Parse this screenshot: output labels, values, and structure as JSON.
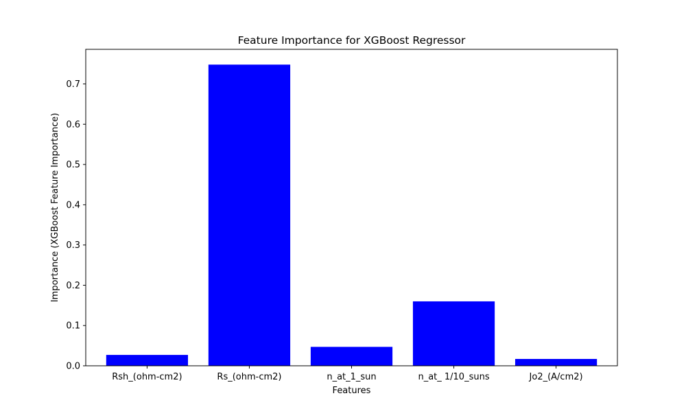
{
  "chart_data": {
    "type": "bar",
    "title": "Feature Importance for XGBoost Regressor",
    "xlabel": "Features",
    "ylabel": "Importance (XGBoost Feature Importance)",
    "categories": [
      "Rsh_(ohm-cm2)",
      "Rs_(ohm-cm2)",
      "n_at_1_sun",
      "n_at_ 1/10_suns",
      "Jo2_(A/cm2)"
    ],
    "values": [
      0.027,
      0.748,
      0.047,
      0.16,
      0.017
    ],
    "ylim": [
      0,
      0.786
    ],
    "yticks": [
      0.0,
      0.1,
      0.2,
      0.3,
      0.4,
      0.5,
      0.6,
      0.7
    ],
    "ytick_labels": [
      "0.0",
      "0.1",
      "0.2",
      "0.3",
      "0.4",
      "0.5",
      "0.6",
      "0.7"
    ],
    "bar_color": "#0000ff",
    "grid": false,
    "legend": "none"
  }
}
